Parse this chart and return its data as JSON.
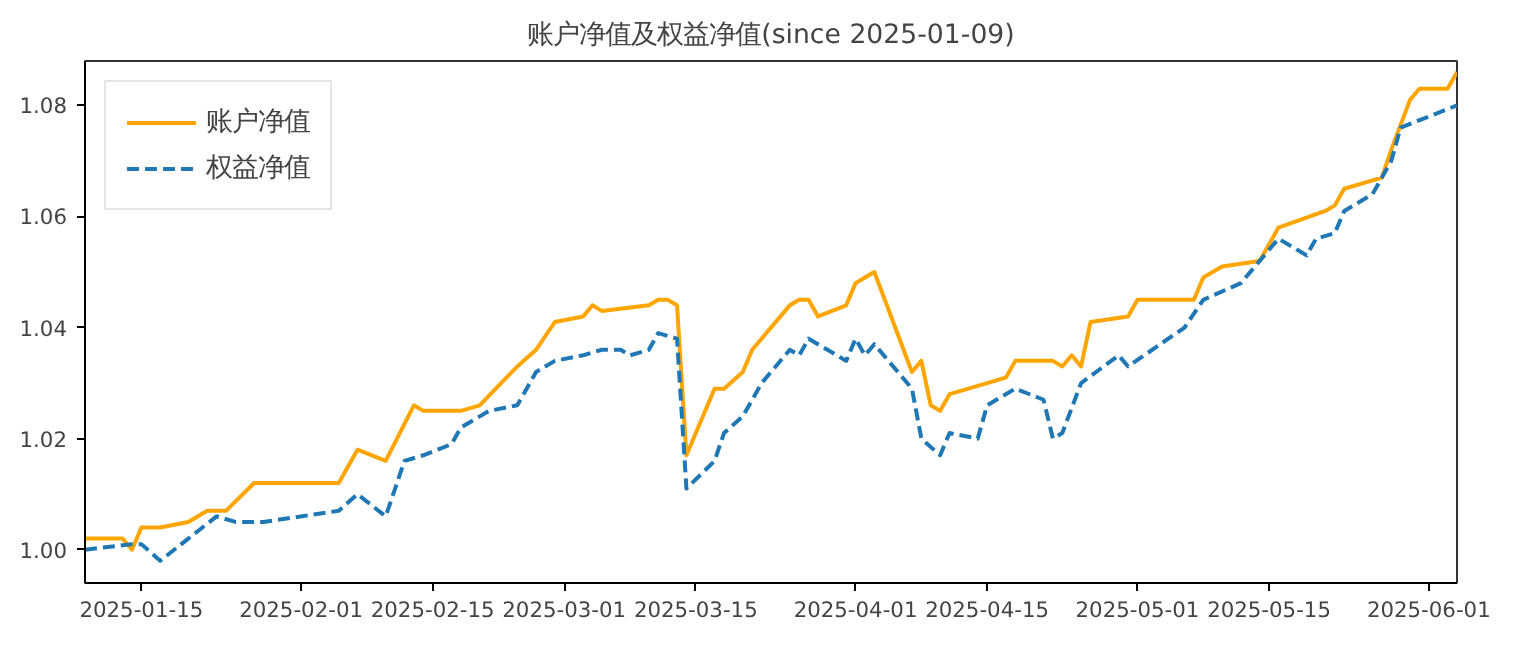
{
  "chart_data": {
    "type": "line",
    "title": "账户净值及权益净值(since 2025-01-09)",
    "xlim": [
      "2025-01-09",
      "2025-06-04"
    ],
    "xticks": [
      "2025-01-15",
      "2025-02-01",
      "2025-02-15",
      "2025-03-01",
      "2025-03-15",
      "2025-04-01",
      "2025-04-15",
      "2025-05-01",
      "2025-05-15",
      "2025-06-01"
    ],
    "ylim": [
      0.994,
      1.088
    ],
    "yticks": [
      {
        "value": 1.0,
        "label": "1.00"
      },
      {
        "value": 1.02,
        "label": "1.02"
      },
      {
        "value": 1.04,
        "label": "1.04"
      },
      {
        "value": 1.06,
        "label": "1.06"
      },
      {
        "value": 1.08,
        "label": "1.08"
      }
    ],
    "grid": false,
    "legend": "top left",
    "series": [
      {
        "name": "账户净值",
        "color": "#ffa500",
        "line_style": "solid",
        "x": [
          "2025-01-09",
          "2025-01-13",
          "2025-01-14",
          "2025-01-15",
          "2025-01-17",
          "2025-01-20",
          "2025-01-22",
          "2025-01-24",
          "2025-01-27",
          "2025-02-05",
          "2025-02-07",
          "2025-02-10",
          "2025-02-13",
          "2025-02-14",
          "2025-02-18",
          "2025-02-20",
          "2025-02-24",
          "2025-02-26",
          "2025-02-28",
          "2025-03-03",
          "2025-03-04",
          "2025-03-05",
          "2025-03-10",
          "2025-03-11",
          "2025-03-12",
          "2025-03-13",
          "2025-03-14",
          "2025-03-17",
          "2025-03-18",
          "2025-03-20",
          "2025-03-21",
          "2025-03-25",
          "2025-03-26",
          "2025-03-27",
          "2025-03-28",
          "2025-03-31",
          "2025-04-01",
          "2025-04-02",
          "2025-04-03",
          "2025-04-07",
          "2025-04-08",
          "2025-04-09",
          "2025-04-10",
          "2025-04-11",
          "2025-04-15",
          "2025-04-17",
          "2025-04-18",
          "2025-04-22",
          "2025-04-23",
          "2025-04-24",
          "2025-04-25",
          "2025-04-26",
          "2025-04-30",
          "2025-05-01",
          "2025-05-07",
          "2025-05-08",
          "2025-05-10",
          "2025-05-14",
          "2025-05-16",
          "2025-05-21",
          "2025-05-22",
          "2025-05-23",
          "2025-05-27",
          "2025-05-28",
          "2025-05-30",
          "2025-05-31",
          "2025-06-03",
          "2025-06-04"
        ],
        "values": [
          1.002,
          1.002,
          1.0,
          1.004,
          1.004,
          1.005,
          1.007,
          1.007,
          1.012,
          1.012,
          1.018,
          1.016,
          1.026,
          1.025,
          1.025,
          1.026,
          1.033,
          1.036,
          1.041,
          1.042,
          1.044,
          1.043,
          1.044,
          1.045,
          1.045,
          1.044,
          1.017,
          1.029,
          1.029,
          1.032,
          1.036,
          1.044,
          1.045,
          1.045,
          1.042,
          1.044,
          1.048,
          1.049,
          1.05,
          1.032,
          1.034,
          1.026,
          1.025,
          1.028,
          1.03,
          1.031,
          1.034,
          1.034,
          1.033,
          1.035,
          1.033,
          1.041,
          1.042,
          1.045,
          1.045,
          1.049,
          1.051,
          1.052,
          1.058,
          1.061,
          1.062,
          1.065,
          1.067,
          1.072,
          1.081,
          1.083,
          1.083,
          1.086
        ]
      },
      {
        "name": "权益净值",
        "color": "#1f77b4",
        "line_style": "dashed",
        "x": [
          "2025-01-09",
          "2025-01-14",
          "2025-01-15",
          "2025-01-17",
          "2025-01-23",
          "2025-01-25",
          "2025-01-28",
          "2025-02-05",
          "2025-02-07",
          "2025-02-10",
          "2025-02-12",
          "2025-02-14",
          "2025-02-17",
          "2025-02-18",
          "2025-02-21",
          "2025-02-24",
          "2025-02-26",
          "2025-02-28",
          "2025-03-03",
          "2025-03-05",
          "2025-03-07",
          "2025-03-08",
          "2025-03-10",
          "2025-03-11",
          "2025-03-13",
          "2025-03-14",
          "2025-03-17",
          "2025-03-18",
          "2025-03-20",
          "2025-03-22",
          "2025-03-25",
          "2025-03-26",
          "2025-03-27",
          "2025-03-31",
          "2025-04-01",
          "2025-04-02",
          "2025-04-03",
          "2025-04-07",
          "2025-04-08",
          "2025-04-10",
          "2025-04-11",
          "2025-04-14",
          "2025-04-15",
          "2025-04-18",
          "2025-04-21",
          "2025-04-22",
          "2025-04-23",
          "2025-04-25",
          "2025-04-29",
          "2025-04-30",
          "2025-05-06",
          "2025-05-08",
          "2025-05-12",
          "2025-05-15",
          "2025-05-16",
          "2025-05-19",
          "2025-05-20",
          "2025-05-22",
          "2025-05-23",
          "2025-05-26",
          "2025-05-28",
          "2025-05-29",
          "2025-06-04"
        ],
        "values": [
          1.0,
          1.001,
          1.001,
          0.998,
          1.006,
          1.005,
          1.005,
          1.007,
          1.01,
          1.006,
          1.016,
          1.017,
          1.019,
          1.022,
          1.025,
          1.026,
          1.032,
          1.034,
          1.035,
          1.036,
          1.036,
          1.035,
          1.036,
          1.039,
          1.038,
          1.011,
          1.016,
          1.021,
          1.024,
          1.03,
          1.036,
          1.035,
          1.038,
          1.034,
          1.038,
          1.035,
          1.037,
          1.029,
          1.02,
          1.017,
          1.021,
          1.02,
          1.026,
          1.029,
          1.027,
          1.02,
          1.021,
          1.03,
          1.035,
          1.033,
          1.04,
          1.045,
          1.048,
          1.054,
          1.056,
          1.053,
          1.056,
          1.057,
          1.061,
          1.064,
          1.07,
          1.076,
          1.08
        ]
      }
    ]
  }
}
